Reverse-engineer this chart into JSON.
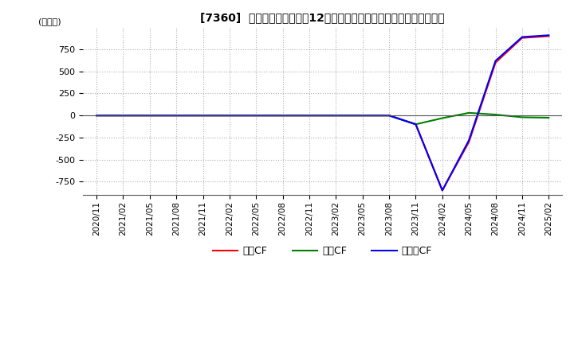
{
  "title": "[7360]  キャッシュフローの12か月移動合計の対前年同期増減額の推移",
  "ylabel": "(百万円)",
  "legend_labels": [
    "営業CF",
    "投資CF",
    "フリーCF"
  ],
  "legend_colors": [
    "#ff0000",
    "#008000",
    "#0000ff"
  ],
  "background_color": "#ffffff",
  "grid_color": "#b0b0b0",
  "ylim": [
    -900,
    1000
  ],
  "yticks": [
    -750,
    -500,
    -250,
    0,
    250,
    500,
    750
  ],
  "x_labels": [
    "2020/11",
    "2021/02",
    "2021/05",
    "2021/08",
    "2021/11",
    "2022/02",
    "2022/05",
    "2022/08",
    "2022/11",
    "2023/02",
    "2023/05",
    "2023/08",
    "2023/11",
    "2024/02",
    "2024/05",
    "2024/08",
    "2024/11",
    "2025/02"
  ],
  "operating_cf": [
    0,
    0,
    0,
    0,
    0,
    0,
    0,
    0,
    0,
    0,
    0,
    0,
    -100,
    -850,
    -300,
    600,
    880,
    900
  ],
  "investing_cf": [
    0,
    0,
    0,
    0,
    0,
    0,
    0,
    0,
    0,
    0,
    0,
    0,
    -100,
    -30,
    30,
    10,
    -20,
    -25
  ],
  "free_cf": [
    0,
    0,
    0,
    0,
    0,
    0,
    0,
    0,
    0,
    0,
    0,
    0,
    -100,
    -850,
    -280,
    620,
    890,
    910
  ]
}
